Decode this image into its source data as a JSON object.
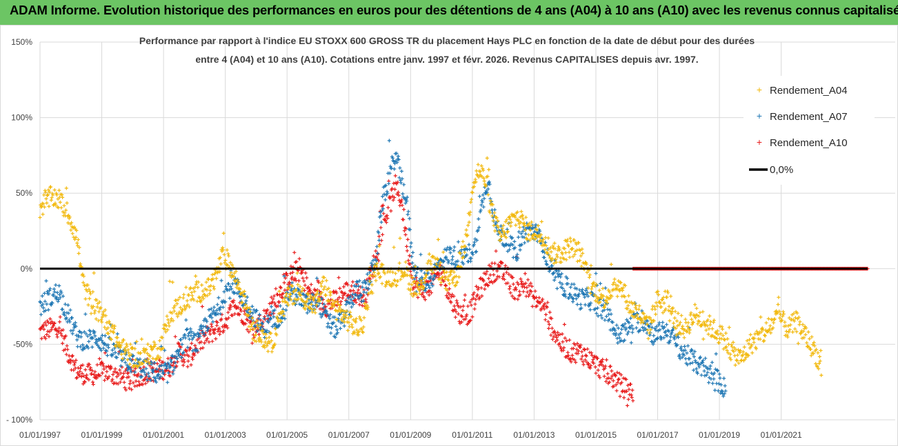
{
  "header": {
    "title": "ADAM Informe. Evolution historique des performances en euros pour des détentions de 4 ans (A04) à 10 ans (A10) avec les revenus connus capitalisés"
  },
  "colors": {
    "banner": "#6cc564",
    "a04": "#f2b90f",
    "a07": "#1f77b4",
    "a10": "#e81c1c",
    "zero": "#000000"
  },
  "chart_data": {
    "type": "scatter",
    "title_line1": "Performance par rapport à l'indice EU STOXX 600 GROSS TR  du placement Hays PLC en fonction de la date de début pour des durées",
    "title_line2": "entre 4 (A04) et 10 ans (A10). Cotations entre janv. 1997 et févr. 2026. Revenus CAPITALISES depuis avr. 1997.",
    "xlabel": "",
    "ylabel": "",
    "xlim": [
      1997.0,
      2023.8
    ],
    "ylim": [
      -100,
      150
    ],
    "y_ticks": [
      "150%",
      "100%",
      "50%",
      "0%",
      "-50%",
      "- 100%"
    ],
    "y_tick_values": [
      150,
      100,
      50,
      0,
      -50,
      -100
    ],
    "x_ticks": [
      "01/01/1997",
      "01/01/1999",
      "01/01/2001",
      "01/01/2003",
      "01/01/2005",
      "01/01/2007",
      "01/01/2009",
      "01/01/2011",
      "01/01/2013",
      "01/01/2015",
      "01/01/2017",
      "01/01/2019",
      "01/01/2021"
    ],
    "x_tick_values": [
      1997,
      1999,
      2001,
      2003,
      2005,
      2007,
      2009,
      2011,
      2013,
      2015,
      2017,
      2019,
      2021
    ],
    "grid": true,
    "legend_position": "top-right",
    "series": [
      {
        "name": "Rendement_A04",
        "x": [
          1997.0,
          1997.2,
          1997.4,
          1997.6,
          1997.8,
          1998.0,
          1998.2,
          1998.4,
          1998.7,
          1999.0,
          1999.3,
          1999.6,
          2000.0,
          2000.3,
          2000.6,
          2000.9,
          2001.2,
          2001.5,
          2001.8,
          2002.1,
          2002.4,
          2002.7,
          2002.9,
          2003.1,
          2003.3,
          2003.6,
          2003.9,
          2004.2,
          2004.5,
          2004.8,
          2005.0,
          2005.3,
          2005.6,
          2005.9,
          2006.2,
          2006.5,
          2006.8,
          2007.0,
          2007.3,
          2007.5,
          2007.7,
          2007.9,
          2008.2,
          2008.5,
          2008.8,
          2009.0,
          2009.3,
          2009.6,
          2009.9,
          2010.2,
          2010.5,
          2010.8,
          2011.0,
          2011.2,
          2011.4,
          2011.6,
          2011.9,
          2012.2,
          2012.5,
          2012.8,
          2013.0,
          2013.3,
          2013.6,
          2013.9,
          2014.2,
          2014.5,
          2014.8,
          2015.0,
          2015.3,
          2015.6,
          2015.9,
          2016.1,
          2016.4,
          2016.7,
          2017.0,
          2017.3,
          2017.6,
          2017.9,
          2018.2,
          2018.5,
          2018.8,
          2019.1,
          2019.4,
          2019.7,
          2020.0,
          2020.3,
          2020.6,
          2020.9,
          2021.2,
          2021.5,
          2021.8,
          2022.1,
          2022.3
        ],
        "values": [
          40,
          45,
          48,
          46,
          40,
          32,
          20,
          -10,
          -25,
          -30,
          -40,
          -52,
          -58,
          -60,
          -55,
          -52,
          -30,
          -25,
          -20,
          -15,
          -15,
          -5,
          8,
          5,
          -5,
          -20,
          -40,
          -45,
          -50,
          -30,
          -20,
          -15,
          -20,
          -25,
          -10,
          -25,
          -30,
          -35,
          -40,
          -35,
          -10,
          0,
          -5,
          -5,
          0,
          -10,
          -15,
          5,
          0,
          -10,
          -5,
          20,
          55,
          65,
          60,
          40,
          20,
          30,
          35,
          25,
          25,
          20,
          10,
          10,
          15,
          10,
          -10,
          -15,
          -20,
          -10,
          -15,
          -25,
          -30,
          -40,
          -20,
          -25,
          -35,
          -40,
          -30,
          -35,
          -40,
          -45,
          -55,
          -60,
          -50,
          -45,
          -40,
          -30,
          -40,
          -35,
          -45,
          -55,
          -65
        ]
      },
      {
        "name": "Rendement_A07",
        "x": [
          1997.0,
          1997.3,
          1997.6,
          1997.9,
          1998.2,
          1998.5,
          1998.8,
          1999.1,
          1999.4,
          1999.7,
          2000.0,
          2000.3,
          2000.6,
          2000.9,
          2001.2,
          2001.5,
          2001.8,
          2002.1,
          2002.4,
          2002.7,
          2003.0,
          2003.3,
          2003.6,
          2003.9,
          2004.2,
          2004.5,
          2004.8,
          2005.1,
          2005.4,
          2005.7,
          2006.0,
          2006.3,
          2006.6,
          2006.9,
          2007.2,
          2007.5,
          2007.7,
          2007.9,
          2008.1,
          2008.3,
          2008.5,
          2008.7,
          2008.9,
          2009.1,
          2009.4,
          2009.7,
          2010.0,
          2010.3,
          2010.6,
          2010.9,
          2011.1,
          2011.3,
          2011.5,
          2011.8,
          2012.1,
          2012.4,
          2012.7,
          2013.0,
          2013.3,
          2013.6,
          2013.9,
          2014.2,
          2014.5,
          2014.8,
          2015.1,
          2015.4,
          2015.7,
          2016.0,
          2016.3,
          2016.6,
          2016.9,
          2017.2,
          2017.5,
          2017.8,
          2018.1,
          2018.4,
          2018.7,
          2019.0,
          2019.2
        ],
        "values": [
          -25,
          -20,
          -15,
          -30,
          -45,
          -48,
          -45,
          -50,
          -55,
          -60,
          -63,
          -66,
          -68,
          -70,
          -68,
          -55,
          -45,
          -50,
          -35,
          -30,
          -15,
          -10,
          -20,
          -30,
          -40,
          -35,
          -30,
          -15,
          -20,
          -25,
          -20,
          -35,
          -40,
          -30,
          -15,
          -15,
          -5,
          10,
          45,
          60,
          75,
          60,
          40,
          0,
          -10,
          -5,
          5,
          10,
          5,
          10,
          15,
          40,
          60,
          25,
          20,
          10,
          25,
          25,
          15,
          -5,
          -10,
          -15,
          -20,
          -20,
          -25,
          -30,
          -45,
          -40,
          -35,
          -35,
          -45,
          -40,
          -45,
          -55,
          -60,
          -65,
          -70,
          -75,
          -80
        ]
      },
      {
        "name": "Rendement_A10",
        "x": [
          1997.0,
          1997.3,
          1997.6,
          1997.9,
          1998.2,
          1998.5,
          1998.8,
          1999.1,
          1999.4,
          1999.7,
          2000.0,
          2000.3,
          2000.6,
          2000.9,
          2001.2,
          2001.5,
          2001.8,
          2002.1,
          2002.4,
          2002.7,
          2003.0,
          2003.3,
          2003.6,
          2003.9,
          2004.2,
          2004.5,
          2004.8,
          2005.1,
          2005.4,
          2005.7,
          2006.0,
          2006.3,
          2006.6,
          2006.9,
          2007.2,
          2007.5,
          2007.7,
          2007.9,
          2008.1,
          2008.3,
          2008.5,
          2008.7,
          2008.9,
          2009.1,
          2009.4,
          2009.7,
          2010.0,
          2010.3,
          2010.6,
          2010.9,
          2011.2,
          2011.5,
          2011.8,
          2012.1,
          2012.4,
          2012.7,
          2013.0,
          2013.3,
          2013.6,
          2013.9,
          2014.2,
          2014.5,
          2014.8,
          2015.1,
          2015.4,
          2015.7,
          2016.0,
          2016.2
        ],
        "values": [
          -42,
          -40,
          -38,
          -55,
          -68,
          -70,
          -70,
          -68,
          -70,
          -72,
          -75,
          -70,
          -68,
          -67,
          -65,
          -55,
          -60,
          -50,
          -45,
          -40,
          -35,
          -25,
          -30,
          -40,
          -35,
          -25,
          -15,
          -5,
          0,
          -15,
          -20,
          -25,
          -20,
          -15,
          -15,
          -20,
          -5,
          10,
          30,
          40,
          55,
          45,
          15,
          -10,
          -15,
          -10,
          0,
          -20,
          -30,
          -30,
          -15,
          -5,
          0,
          -5,
          -15,
          -10,
          -20,
          -25,
          -40,
          -50,
          -55,
          -55,
          -60,
          -65,
          -70,
          -75,
          -80,
          -82
        ]
      }
    ],
    "flat_segment": {
      "series": "Rendement_A10",
      "from": 2016.2,
      "to": 2023.8,
      "value": 0
    },
    "reference_line": {
      "name": "0,0%",
      "value": 0
    }
  }
}
